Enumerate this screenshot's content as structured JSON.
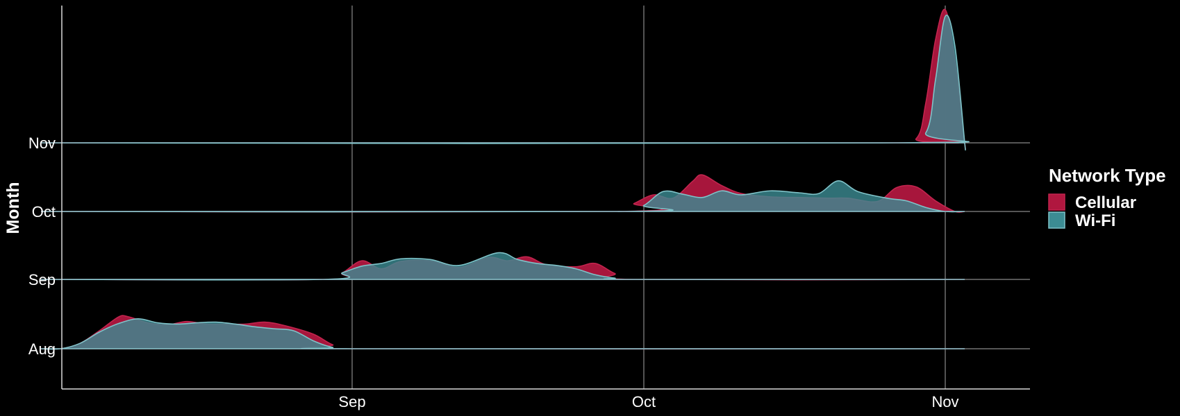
{
  "chart_data": {
    "type": "area",
    "subtype": "ridgeline-density",
    "title": "",
    "xlabel": "",
    "ylabel": "Month",
    "x_ticks": [
      "Sep",
      "Oct",
      "Nov"
    ],
    "y_categories": [
      "Aug",
      "Sep",
      "Oct",
      "Nov"
    ],
    "x_range": [
      "2024-07-31",
      "2024-11-03"
    ],
    "grid": true,
    "legend": {
      "title": "Network Type",
      "position": "right",
      "entries": [
        "Cellular",
        "Wi-Fi"
      ]
    },
    "series": [
      {
        "name": "Cellular",
        "color": "#b0173f",
        "ridges": {
          "Aug": [
            {
              "date": "2024-08-02",
              "density": 0.0
            },
            {
              "date": "2024-08-04",
              "density": 0.08
            },
            {
              "date": "2024-08-06",
              "density": 0.27
            },
            {
              "date": "2024-08-08",
              "density": 0.48
            },
            {
              "date": "2024-08-09",
              "density": 0.48
            },
            {
              "date": "2024-08-11",
              "density": 0.39
            },
            {
              "date": "2024-08-13",
              "density": 0.36
            },
            {
              "date": "2024-08-15",
              "density": 0.41
            },
            {
              "date": "2024-08-17",
              "density": 0.37
            },
            {
              "date": "2024-08-19",
              "density": 0.37
            },
            {
              "date": "2024-08-21",
              "density": 0.37
            },
            {
              "date": "2024-08-23",
              "density": 0.4
            },
            {
              "date": "2024-08-25",
              "density": 0.35
            },
            {
              "date": "2024-08-28",
              "density": 0.22
            },
            {
              "date": "2024-08-30",
              "density": 0.06
            },
            {
              "date": "2024-09-01",
              "density": 0.0
            }
          ],
          "Sep": [
            {
              "date": "2024-08-29",
              "density": 0.0
            },
            {
              "date": "2024-08-31",
              "density": 0.1
            },
            {
              "date": "2024-09-02",
              "density": 0.28
            },
            {
              "date": "2024-09-04",
              "density": 0.16
            },
            {
              "date": "2024-09-06",
              "density": 0.27
            },
            {
              "date": "2024-09-09",
              "density": 0.28
            },
            {
              "date": "2024-09-12",
              "density": 0.18
            },
            {
              "date": "2024-09-15",
              "density": 0.33
            },
            {
              "date": "2024-09-17",
              "density": 0.28
            },
            {
              "date": "2024-09-19",
              "density": 0.34
            },
            {
              "date": "2024-09-21",
              "density": 0.22
            },
            {
              "date": "2024-09-24",
              "density": 0.19
            },
            {
              "date": "2024-09-26",
              "density": 0.24
            },
            {
              "date": "2024-09-28",
              "density": 0.09
            },
            {
              "date": "2024-09-30",
              "density": 0.0
            }
          ],
          "Oct": [
            {
              "date": "2024-09-28",
              "density": 0.0
            },
            {
              "date": "2024-09-30",
              "density": 0.12
            },
            {
              "date": "2024-10-02",
              "density": 0.25
            },
            {
              "date": "2024-10-04",
              "density": 0.2
            },
            {
              "date": "2024-10-06",
              "density": 0.45
            },
            {
              "date": "2024-10-07",
              "density": 0.55
            },
            {
              "date": "2024-10-09",
              "density": 0.39
            },
            {
              "date": "2024-10-11",
              "density": 0.27
            },
            {
              "date": "2024-10-14",
              "density": 0.22
            },
            {
              "date": "2024-10-17",
              "density": 0.21
            },
            {
              "date": "2024-10-20",
              "density": 0.2
            },
            {
              "date": "2024-10-22",
              "density": 0.2
            },
            {
              "date": "2024-10-25",
              "density": 0.15
            },
            {
              "date": "2024-10-27",
              "density": 0.36
            },
            {
              "date": "2024-10-29",
              "density": 0.37
            },
            {
              "date": "2024-10-31",
              "density": 0.16
            },
            {
              "date": "2024-11-02",
              "density": 0.0
            }
          ],
          "Nov": [
            {
              "date": "2024-10-26",
              "density": 0.0
            },
            {
              "date": "2024-10-29",
              "density": 0.06
            },
            {
              "date": "2024-10-30",
              "density": 0.6
            },
            {
              "date": "2024-10-31",
              "density": 1.55
            },
            {
              "date": "2024-11-01",
              "density": 2.0
            },
            {
              "date": "2024-11-02",
              "density": 1.25
            },
            {
              "date": "2024-11-03",
              "density": 0.0
            }
          ]
        }
      },
      {
        "name": "Wi-Fi",
        "color": "#3c8c93",
        "ridges": {
          "Aug": [
            {
              "date": "2024-08-02",
              "density": 0.0
            },
            {
              "date": "2024-08-04",
              "density": 0.08
            },
            {
              "date": "2024-08-06",
              "density": 0.25
            },
            {
              "date": "2024-08-08",
              "density": 0.38
            },
            {
              "date": "2024-08-10",
              "density": 0.45
            },
            {
              "date": "2024-08-12",
              "density": 0.39
            },
            {
              "date": "2024-08-14",
              "density": 0.37
            },
            {
              "date": "2024-08-16",
              "density": 0.39
            },
            {
              "date": "2024-08-18",
              "density": 0.4
            },
            {
              "date": "2024-08-20",
              "density": 0.37
            },
            {
              "date": "2024-08-22",
              "density": 0.33
            },
            {
              "date": "2024-08-24",
              "density": 0.3
            },
            {
              "date": "2024-08-26",
              "density": 0.27
            },
            {
              "date": "2024-08-28",
              "density": 0.12
            },
            {
              "date": "2024-08-30",
              "density": 0.02
            },
            {
              "date": "2024-09-01",
              "density": 0.0
            }
          ],
          "Sep": [
            {
              "date": "2024-08-29",
              "density": 0.0
            },
            {
              "date": "2024-08-31",
              "density": 0.1
            },
            {
              "date": "2024-09-02",
              "density": 0.2
            },
            {
              "date": "2024-09-04",
              "density": 0.24
            },
            {
              "date": "2024-09-06",
              "density": 0.31
            },
            {
              "date": "2024-09-09",
              "density": 0.3
            },
            {
              "date": "2024-09-12",
              "density": 0.21
            },
            {
              "date": "2024-09-16",
              "density": 0.4
            },
            {
              "date": "2024-09-18",
              "density": 0.3
            },
            {
              "date": "2024-09-20",
              "density": 0.24
            },
            {
              "date": "2024-09-22",
              "density": 0.21
            },
            {
              "date": "2024-09-24",
              "density": 0.16
            },
            {
              "date": "2024-09-26",
              "density": 0.07
            },
            {
              "date": "2024-09-28",
              "density": 0.02
            },
            {
              "date": "2024-09-30",
              "density": 0.0
            }
          ],
          "Oct": [
            {
              "date": "2024-09-29",
              "density": 0.0
            },
            {
              "date": "2024-10-01",
              "density": 0.09
            },
            {
              "date": "2024-10-03",
              "density": 0.3
            },
            {
              "date": "2024-10-05",
              "density": 0.26
            },
            {
              "date": "2024-10-07",
              "density": 0.21
            },
            {
              "date": "2024-10-09",
              "density": 0.31
            },
            {
              "date": "2024-10-11",
              "density": 0.25
            },
            {
              "date": "2024-10-14",
              "density": 0.31
            },
            {
              "date": "2024-10-17",
              "density": 0.28
            },
            {
              "date": "2024-10-19",
              "density": 0.27
            },
            {
              "date": "2024-10-21",
              "density": 0.46
            },
            {
              "date": "2024-10-23",
              "density": 0.3
            },
            {
              "date": "2024-10-26",
              "density": 0.2
            },
            {
              "date": "2024-10-28",
              "density": 0.16
            },
            {
              "date": "2024-10-30",
              "density": 0.06
            },
            {
              "date": "2024-11-01",
              "density": 0.0
            }
          ],
          "Nov": [
            {
              "date": "2024-10-27",
              "density": 0.0
            },
            {
              "date": "2024-10-30",
              "density": 0.15
            },
            {
              "date": "2024-10-31",
              "density": 0.95
            },
            {
              "date": "2024-11-01",
              "density": 1.9
            },
            {
              "date": "2024-11-02",
              "density": 1.45
            },
            {
              "date": "2024-11-03",
              "density": 0.0
            }
          ]
        }
      }
    ]
  }
}
